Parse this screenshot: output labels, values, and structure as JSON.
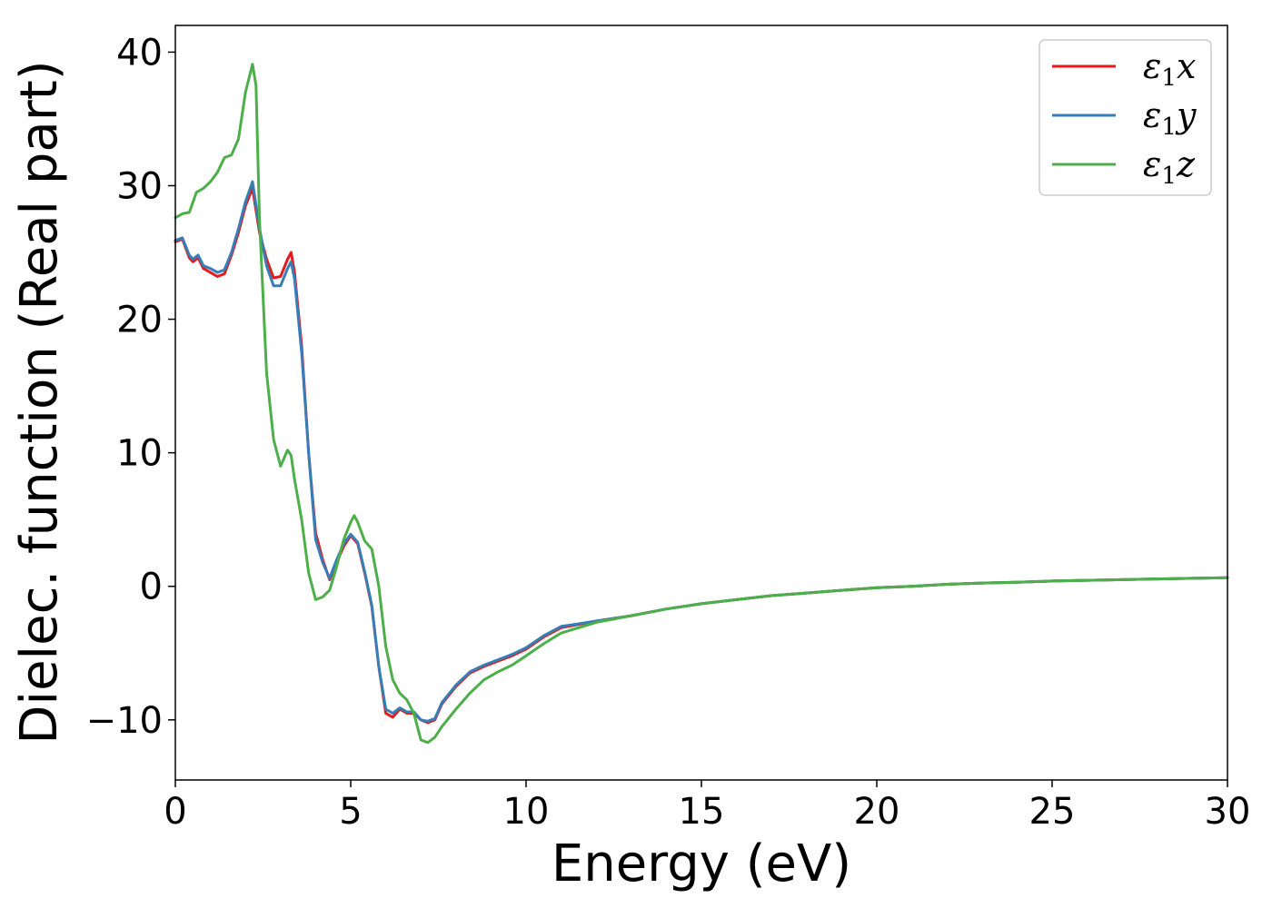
{
  "chart_data": {
    "type": "line",
    "title": "",
    "xlabel": "Energy (eV)",
    "ylabel": "Dielec. function (Real part)",
    "xlim": [
      0,
      30
    ],
    "ylim": [
      -14.5,
      42
    ],
    "xticks": [
      0,
      5,
      10,
      15,
      20,
      25,
      30
    ],
    "xtick_labels": [
      "0",
      "5",
      "10",
      "15",
      "20",
      "25",
      "30"
    ],
    "yticks": [
      -10,
      0,
      10,
      20,
      30,
      40
    ],
    "ytick_labels": [
      "−10",
      "0",
      "10",
      "20",
      "30",
      "40"
    ],
    "grid": false,
    "legend_position": "top-right",
    "series": [
      {
        "name": "ε₁x",
        "legend_base": "ε",
        "legend_sub": "1",
        "legend_var": "x",
        "color": "#e41a1c",
        "x": [
          0,
          0.2,
          0.4,
          0.5,
          0.65,
          0.8,
          1.0,
          1.2,
          1.4,
          1.6,
          1.8,
          2.0,
          2.2,
          2.4,
          2.6,
          2.8,
          3.0,
          3.2,
          3.3,
          3.4,
          3.6,
          3.8,
          4.0,
          4.2,
          4.4,
          4.6,
          4.8,
          5.0,
          5.2,
          5.4,
          5.6,
          5.8,
          6.0,
          6.2,
          6.4,
          6.6,
          6.8,
          7.0,
          7.2,
          7.4,
          7.6,
          8.0,
          8.4,
          8.8,
          9.2,
          9.6,
          10.0,
          10.5,
          11.0,
          12.0,
          13.0,
          14.0,
          15.0,
          16.0,
          17.0,
          18.0,
          19.0,
          20.0,
          21.0,
          22.0,
          23.0,
          24.0,
          25.0,
          26.0,
          27.0,
          28.0,
          29.0,
          30.0
        ],
        "y": [
          25.8,
          26.0,
          24.6,
          24.3,
          24.6,
          23.8,
          23.5,
          23.2,
          23.4,
          24.8,
          26.5,
          28.5,
          29.8,
          26.5,
          24.5,
          23.1,
          23.2,
          24.5,
          25.0,
          23.5,
          18.0,
          10.0,
          4.0,
          2.0,
          0.5,
          1.8,
          3.0,
          3.8,
          3.2,
          1.0,
          -1.5,
          -6.0,
          -9.5,
          -9.8,
          -9.2,
          -9.5,
          -9.5,
          -10.0,
          -10.2,
          -10.0,
          -8.8,
          -7.5,
          -6.5,
          -6.0,
          -5.6,
          -5.2,
          -4.7,
          -3.8,
          -3.1,
          -2.6,
          -2.2,
          -1.7,
          -1.3,
          -1.0,
          -0.7,
          -0.5,
          -0.3,
          -0.1,
          0.0,
          0.15,
          0.25,
          0.3,
          0.4,
          0.45,
          0.5,
          0.55,
          0.6,
          0.65
        ]
      },
      {
        "name": "ε₁y",
        "legend_base": "ε",
        "legend_sub": "1",
        "legend_var": "y",
        "color": "#377eb8",
        "x": [
          0,
          0.2,
          0.4,
          0.5,
          0.65,
          0.8,
          1.0,
          1.2,
          1.4,
          1.6,
          1.8,
          2.0,
          2.2,
          2.4,
          2.6,
          2.8,
          3.0,
          3.2,
          3.3,
          3.4,
          3.6,
          3.8,
          4.0,
          4.2,
          4.4,
          4.6,
          4.8,
          5.0,
          5.2,
          5.4,
          5.6,
          5.8,
          6.0,
          6.2,
          6.4,
          6.6,
          6.8,
          7.0,
          7.2,
          7.4,
          7.6,
          8.0,
          8.4,
          8.8,
          9.2,
          9.6,
          10.0,
          10.5,
          11.0,
          12.0,
          13.0,
          14.0,
          15.0,
          16.0,
          17.0,
          18.0,
          19.0,
          20.0,
          21.0,
          22.0,
          23.0,
          24.0,
          25.0,
          26.0,
          27.0,
          28.0,
          29.0,
          30.0
        ],
        "y": [
          25.9,
          26.1,
          24.8,
          24.5,
          24.8,
          24.0,
          23.8,
          23.5,
          23.7,
          25.0,
          26.8,
          28.8,
          30.3,
          26.8,
          24.0,
          22.5,
          22.5,
          23.8,
          24.3,
          23.0,
          17.5,
          10.0,
          3.5,
          1.8,
          0.6,
          2.0,
          3.2,
          3.9,
          3.3,
          1.1,
          -1.4,
          -6.0,
          -9.2,
          -9.5,
          -9.1,
          -9.4,
          -9.4,
          -10.0,
          -10.1,
          -9.9,
          -8.7,
          -7.4,
          -6.4,
          -5.9,
          -5.5,
          -5.1,
          -4.6,
          -3.7,
          -3.0,
          -2.6,
          -2.2,
          -1.7,
          -1.3,
          -1.0,
          -0.7,
          -0.5,
          -0.3,
          -0.1,
          0.0,
          0.15,
          0.25,
          0.3,
          0.4,
          0.45,
          0.5,
          0.55,
          0.6,
          0.65
        ]
      },
      {
        "name": "ε₁z",
        "legend_base": "ε",
        "legend_sub": "1",
        "legend_var": "z",
        "color": "#4daf4a",
        "x": [
          0,
          0.2,
          0.4,
          0.6,
          0.8,
          1.0,
          1.2,
          1.4,
          1.6,
          1.8,
          2.0,
          2.2,
          2.3,
          2.4,
          2.6,
          2.8,
          3.0,
          3.2,
          3.3,
          3.4,
          3.6,
          3.8,
          4.0,
          4.2,
          4.4,
          4.6,
          4.8,
          5.0,
          5.1,
          5.2,
          5.4,
          5.6,
          5.8,
          6.0,
          6.2,
          6.4,
          6.6,
          6.8,
          7.0,
          7.2,
          7.4,
          7.6,
          8.0,
          8.4,
          8.8,
          9.2,
          9.6,
          10.0,
          10.5,
          11.0,
          12.0,
          13.0,
          14.0,
          15.0,
          16.0,
          17.0,
          18.0,
          19.0,
          20.0,
          21.0,
          22.0,
          23.0,
          24.0,
          25.0,
          26.0,
          27.0,
          28.0,
          29.0,
          30.0
        ],
        "y": [
          27.6,
          27.9,
          28.0,
          29.5,
          29.8,
          30.3,
          31.0,
          32.1,
          32.3,
          33.5,
          37.0,
          39.1,
          37.5,
          27.5,
          16.0,
          11.0,
          9.0,
          10.2,
          9.8,
          8.0,
          5.0,
          1.0,
          -1.0,
          -0.8,
          -0.3,
          1.5,
          3.5,
          4.8,
          5.3,
          4.8,
          3.4,
          2.8,
          0.0,
          -4.5,
          -7.0,
          -8.0,
          -8.5,
          -9.5,
          -11.5,
          -11.7,
          -11.3,
          -10.5,
          -9.2,
          -8.0,
          -7.0,
          -6.4,
          -5.9,
          -5.2,
          -4.3,
          -3.5,
          -2.7,
          -2.2,
          -1.7,
          -1.3,
          -1.0,
          -0.7,
          -0.5,
          -0.3,
          -0.1,
          0.0,
          0.15,
          0.25,
          0.3,
          0.4,
          0.45,
          0.5,
          0.55,
          0.6,
          0.65
        ]
      }
    ]
  }
}
